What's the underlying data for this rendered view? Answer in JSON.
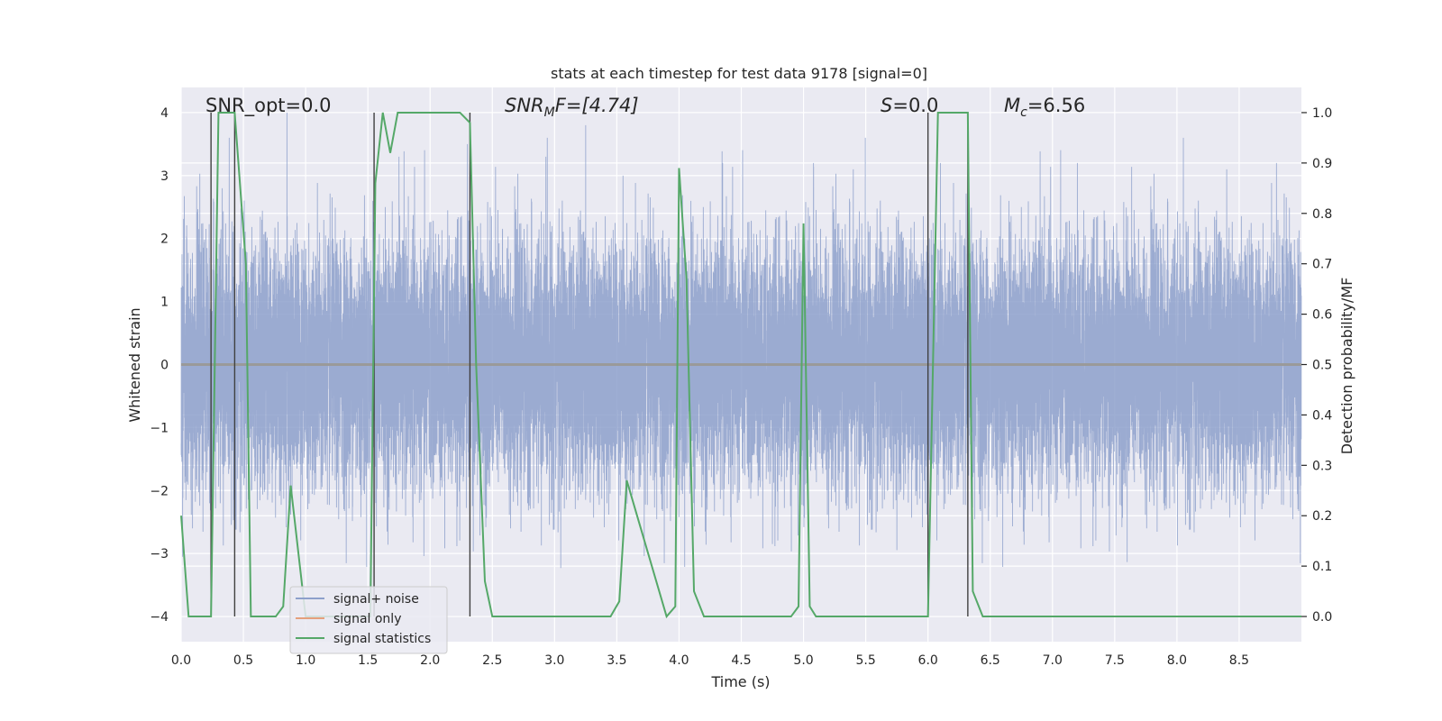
{
  "chart_data": {
    "type": "line",
    "title": "stats at each timestep for test data 9178 [signal=0]",
    "xlabel": "Time (s)",
    "ylabel": "Whitened strain",
    "ylabel_right": "Detection probability/MF",
    "xlim": [
      0,
      9
    ],
    "ylim": [
      -4.4,
      4.4
    ],
    "ylim_right": [
      -0.05,
      1.05
    ],
    "x_ticks": [
      0.0,
      0.5,
      1.0,
      1.5,
      2.0,
      2.5,
      3.0,
      3.5,
      4.0,
      4.5,
      5.0,
      5.5,
      6.0,
      6.5,
      7.0,
      7.5,
      8.0,
      8.5
    ],
    "x_tick_labels": [
      "0.0",
      "0.5",
      "1.0",
      "1.5",
      "2.0",
      "2.5",
      "3.0",
      "3.5",
      "4.0",
      "4.5",
      "5.0",
      "5.5",
      "6.0",
      "6.5",
      "7.0",
      "7.5",
      "8.0",
      "8.5"
    ],
    "y_ticks": [
      -4,
      -3,
      -2,
      -1,
      0,
      1,
      2,
      3,
      4
    ],
    "y_tick_labels": [
      "−4",
      "−3",
      "−2",
      "−1",
      "0",
      "1",
      "2",
      "3",
      "4"
    ],
    "y_right_ticks": [
      0.0,
      0.1,
      0.2,
      0.3,
      0.4,
      0.5,
      0.6,
      0.7,
      0.8,
      0.9,
      1.0
    ],
    "y_right_tick_labels": [
      "0.0",
      "0.1",
      "0.2",
      "0.3",
      "0.4",
      "0.5",
      "0.6",
      "0.7",
      "0.8",
      "0.9",
      "1.0"
    ],
    "annotations": {
      "snr_opt": "SNR_opt=0.0",
      "snr_mf_sym": "SNR",
      "snr_mf_sub": "M",
      "snr_mf_rest": "F=[4.74]",
      "s_sym": "S",
      "s_rest": "=0.0",
      "mc_sym": "M",
      "mc_sub": "c",
      "mc_rest": "=6.56"
    },
    "legend": {
      "location": "lower-left",
      "entries": [
        {
          "label": "signal+ noise",
          "color": "#8da0cb"
        },
        {
          "label": "signal only",
          "color": "#e5a07c"
        },
        {
          "label": "signal statistics",
          "color": "#55a868"
        }
      ]
    },
    "colors": {
      "background": "#eaeaf2",
      "grid": "#ffffff",
      "noise": "#8da0cb",
      "signal_only": "#9a9a9a",
      "statistics": "#55a868",
      "vlines": "#404040"
    },
    "noise": {
      "description_stat": "whitened noise, approx unit variance",
      "duration": 9.0,
      "sample_rate": 2048,
      "spike_times": [
        0.33,
        0.42,
        0.85,
        1.75,
        1.95,
        2.3,
        2.93,
        3.05,
        3.25,
        3.55,
        3.72,
        4.0,
        4.35,
        4.75,
        5.08,
        5.4,
        5.75,
        6.1,
        7.2,
        7.6,
        8.4,
        8.8
      ],
      "spike_values": [
        2.8,
        2.6,
        4.0,
        3.3,
        3.2,
        3.5,
        3.3,
        3.4,
        3.8,
        3.0,
        3.2,
        3.1,
        3.2,
        3.0,
        3.2,
        3.1,
        3.1,
        3.2,
        3.2,
        3.3,
        3.1,
        3.2
      ]
    },
    "vertical_lines": [
      {
        "x": 0.24,
        "y_from_right": 0.0,
        "y_to_right": 1.0
      },
      {
        "x": 0.43,
        "y_from_right": 0.0,
        "y_to_right": 1.0
      },
      {
        "x": 1.55,
        "y_from_right": 0.0,
        "y_to_right": 1.0
      },
      {
        "x": 2.32,
        "y_from_right": 0.0,
        "y_to_right": 1.0
      },
      {
        "x": 6.0,
        "y_from_right": 0.0,
        "y_to_right": 1.0
      },
      {
        "x": 6.32,
        "y_from_right": 0.0,
        "y_to_right": 1.0
      }
    ],
    "statistics_series": {
      "name": "signal statistics",
      "axis": "right",
      "x": [
        0.0,
        0.06,
        0.24,
        0.3,
        0.35,
        0.43,
        0.52,
        0.56,
        0.76,
        0.82,
        0.88,
        1.0,
        1.09,
        1.52,
        1.56,
        1.62,
        1.68,
        1.74,
        1.8,
        2.1,
        2.24,
        2.32,
        2.37,
        2.44,
        2.5,
        3.45,
        3.52,
        3.58,
        3.9,
        3.97,
        4.0,
        4.06,
        4.12,
        4.2,
        4.9,
        4.96,
        5.0,
        5.05,
        5.1,
        5.98,
        6.0,
        6.08,
        6.3,
        6.32,
        6.36,
        6.44,
        9.0
      ],
      "y": [
        0.2,
        0.0,
        0.0,
        1.0,
        1.0,
        1.0,
        0.7,
        0.0,
        0.0,
        0.02,
        0.26,
        0.0,
        0.0,
        0.0,
        0.86,
        1.0,
        0.92,
        1.0,
        1.0,
        1.0,
        1.0,
        0.98,
        0.5,
        0.07,
        0.0,
        0.0,
        0.03,
        0.27,
        0.0,
        0.02,
        0.89,
        0.67,
        0.05,
        0.0,
        0.0,
        0.02,
        0.78,
        0.02,
        0.0,
        0.0,
        0.0,
        1.0,
        1.0,
        1.0,
        0.05,
        0.0,
        0.0
      ]
    }
  }
}
